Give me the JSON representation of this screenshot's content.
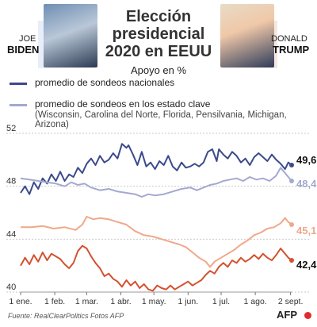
{
  "header": {
    "title_line1": "Elección",
    "title_line2": "presidencial",
    "title_line3": "2020 en EEUU",
    "subtitle": "Apoyo en %",
    "left_first_name": "JOE",
    "left_last_name": "BIDEN",
    "right_first_name": "DONALD",
    "right_last_name": "TRUMP"
  },
  "legend": {
    "national_label": "promedio de sondeos nacionales",
    "state_label": "promedio de sondeos en los estado clave",
    "state_note": "(Wisconsin, Carolina del Norte, Florida, Pensilvania, Michigan, Arizona)"
  },
  "colors": {
    "biden_national": "#3b4a8c",
    "biden_states": "#a3a9cf",
    "trump_national": "#d4512e",
    "trump_states": "#f0a88a",
    "grid": "#c9c9c9"
  },
  "footer": {
    "source": "Fuente: RealClearPolitics     Fotos AFP",
    "agency": "AFP"
  },
  "chart_data": {
    "type": "line",
    "ylim": [
      40,
      52
    ],
    "yticks": [
      "40",
      "44",
      "48",
      "52"
    ],
    "xlim": [
      0,
      246
    ],
    "xticks": [
      {
        "label": "1 ene.",
        "day": 0
      },
      {
        "label": "1 feb.",
        "day": 31
      },
      {
        "label": "1 mar.",
        "day": 60
      },
      {
        "label": "1 abr.",
        "day": 91
      },
      {
        "label": "1 may.",
        "day": 121
      },
      {
        "label": "1 jun.",
        "day": 152
      },
      {
        "label": "1 jul.",
        "day": 182
      },
      {
        "label": "1 ago.",
        "day": 213
      },
      {
        "label": "2 sept.",
        "day": 245
      }
    ],
    "series": [
      {
        "name": "Biden - promedio de sondeos nacionales",
        "color_key": "biden_national",
        "end_label": "49,6",
        "points": [
          [
            0,
            47.5
          ],
          [
            4,
            48.0
          ],
          [
            8,
            47.4
          ],
          [
            12,
            48.3
          ],
          [
            16,
            47.8
          ],
          [
            20,
            48.6
          ],
          [
            24,
            48.2
          ],
          [
            28,
            48.9
          ],
          [
            32,
            48.4
          ],
          [
            36,
            49.1
          ],
          [
            40,
            48.4
          ],
          [
            44,
            48.9
          ],
          [
            48,
            48.7
          ],
          [
            52,
            49.4
          ],
          [
            56,
            49.0
          ],
          [
            60,
            49.7
          ],
          [
            64,
            50.1
          ],
          [
            68,
            49.6
          ],
          [
            72,
            50.3
          ],
          [
            76,
            49.8
          ],
          [
            80,
            50.0
          ],
          [
            84,
            50.5
          ],
          [
            88,
            50.1
          ],
          [
            92,
            51.2
          ],
          [
            96,
            50.9
          ],
          [
            98,
            51.1
          ],
          [
            102,
            50.4
          ],
          [
            106,
            49.6
          ],
          [
            110,
            50.6
          ],
          [
            114,
            49.5
          ],
          [
            118,
            49.8
          ],
          [
            122,
            49.3
          ],
          [
            126,
            49.9
          ],
          [
            130,
            49.6
          ],
          [
            134,
            50.3
          ],
          [
            138,
            49.5
          ],
          [
            142,
            49.2
          ],
          [
            146,
            49.8
          ],
          [
            150,
            49.4
          ],
          [
            154,
            49.5
          ],
          [
            158,
            49.7
          ],
          [
            162,
            49.5
          ],
          [
            166,
            49.8
          ],
          [
            170,
            50.6
          ],
          [
            174,
            50.8
          ],
          [
            178,
            49.9
          ],
          [
            180,
            50.8
          ],
          [
            184,
            50.4
          ],
          [
            188,
            50.1
          ],
          [
            192,
            50.6
          ],
          [
            196,
            50.3
          ],
          [
            200,
            49.8
          ],
          [
            204,
            50.1
          ],
          [
            208,
            49.6
          ],
          [
            212,
            50.2
          ],
          [
            216,
            50.5
          ],
          [
            220,
            50.2
          ],
          [
            224,
            49.9
          ],
          [
            228,
            50.4
          ],
          [
            232,
            50.0
          ],
          [
            236,
            49.7
          ],
          [
            240,
            49.3
          ],
          [
            243,
            49.8
          ],
          [
            246,
            49.6
          ]
        ]
      },
      {
        "name": "Biden - promedio de sondeos en los estado clave",
        "color_key": "biden_states",
        "end_label": "48,4",
        "points": [
          [
            0,
            48.6
          ],
          [
            8,
            48.5
          ],
          [
            16,
            48.4
          ],
          [
            24,
            48.3
          ],
          [
            32,
            48.2
          ],
          [
            40,
            48.0
          ],
          [
            46,
            48.3
          ],
          [
            52,
            48.1
          ],
          [
            58,
            48.2
          ],
          [
            64,
            47.9
          ],
          [
            72,
            47.7
          ],
          [
            80,
            47.8
          ],
          [
            88,
            47.6
          ],
          [
            96,
            47.5
          ],
          [
            104,
            47.4
          ],
          [
            110,
            47.2
          ],
          [
            116,
            47.4
          ],
          [
            122,
            47.3
          ],
          [
            130,
            47.4
          ],
          [
            138,
            47.6
          ],
          [
            146,
            47.8
          ],
          [
            154,
            47.9
          ],
          [
            160,
            47.7
          ],
          [
            166,
            47.9
          ],
          [
            172,
            48.1
          ],
          [
            178,
            48.2
          ],
          [
            184,
            48.4
          ],
          [
            190,
            48.5
          ],
          [
            196,
            48.6
          ],
          [
            202,
            48.4
          ],
          [
            208,
            48.7
          ],
          [
            214,
            48.5
          ],
          [
            220,
            48.6
          ],
          [
            226,
            48.4
          ],
          [
            232,
            48.8
          ],
          [
            236,
            49.4
          ],
          [
            240,
            49.0
          ],
          [
            243,
            48.7
          ],
          [
            246,
            48.4
          ]
        ]
      },
      {
        "name": "Trump - promedio de sondeos en los estado clave",
        "color_key": "trump_states",
        "end_label": "45,1",
        "points": [
          [
            0,
            44.9
          ],
          [
            10,
            44.9
          ],
          [
            20,
            45.0
          ],
          [
            30,
            44.8
          ],
          [
            40,
            44.9
          ],
          [
            50,
            44.7
          ],
          [
            56,
            45.1
          ],
          [
            60,
            45.7
          ],
          [
            66,
            45.5
          ],
          [
            72,
            45.6
          ],
          [
            80,
            45.5
          ],
          [
            88,
            45.3
          ],
          [
            96,
            45.1
          ],
          [
            104,
            44.6
          ],
          [
            112,
            44.3
          ],
          [
            120,
            44.2
          ],
          [
            128,
            44.0
          ],
          [
            136,
            43.8
          ],
          [
            144,
            43.6
          ],
          [
            150,
            43.4
          ],
          [
            156,
            43.0
          ],
          [
            162,
            42.6
          ],
          [
            168,
            42.3
          ],
          [
            172,
            41.9
          ],
          [
            176,
            42.3
          ],
          [
            182,
            42.6
          ],
          [
            188,
            42.9
          ],
          [
            194,
            43.2
          ],
          [
            200,
            43.6
          ],
          [
            206,
            43.9
          ],
          [
            212,
            44.3
          ],
          [
            218,
            44.5
          ],
          [
            224,
            44.8
          ],
          [
            230,
            44.9
          ],
          [
            236,
            45.2
          ],
          [
            240,
            45.6
          ],
          [
            243,
            45.3
          ],
          [
            246,
            45.1
          ]
        ]
      },
      {
        "name": "Trump - promedio de sondeos nacionales",
        "color_key": "trump_national",
        "end_label": "42,4",
        "points": [
          [
            0,
            42.0
          ],
          [
            4,
            42.6
          ],
          [
            8,
            42.1
          ],
          [
            12,
            42.8
          ],
          [
            16,
            42.3
          ],
          [
            20,
            43.0
          ],
          [
            24,
            42.4
          ],
          [
            28,
            42.9
          ],
          [
            32,
            42.7
          ],
          [
            36,
            42.5
          ],
          [
            40,
            42.1
          ],
          [
            44,
            41.8
          ],
          [
            48,
            42.2
          ],
          [
            52,
            43.1
          ],
          [
            56,
            43.5
          ],
          [
            60,
            43.3
          ],
          [
            64,
            42.7
          ],
          [
            68,
            42.2
          ],
          [
            72,
            41.8
          ],
          [
            76,
            41.2
          ],
          [
            80,
            41.4
          ],
          [
            84,
            41.0
          ],
          [
            88,
            40.8
          ],
          [
            92,
            40.4
          ],
          [
            96,
            40.9
          ],
          [
            100,
            40.5
          ],
          [
            104,
            40.8
          ],
          [
            108,
            40.3
          ],
          [
            112,
            40.6
          ],
          [
            116,
            40.2
          ],
          [
            120,
            40.1
          ],
          [
            124,
            40.5
          ],
          [
            128,
            40.3
          ],
          [
            132,
            40.2
          ],
          [
            136,
            40.5
          ],
          [
            140,
            40.2
          ],
          [
            144,
            40.4
          ],
          [
            148,
            40.6
          ],
          [
            152,
            40.8
          ],
          [
            156,
            40.5
          ],
          [
            160,
            40.7
          ],
          [
            164,
            40.9
          ],
          [
            168,
            41.3
          ],
          [
            172,
            41.6
          ],
          [
            176,
            41.4
          ],
          [
            180,
            41.9
          ],
          [
            184,
            42.2
          ],
          [
            188,
            41.9
          ],
          [
            192,
            42.4
          ],
          [
            196,
            42.2
          ],
          [
            200,
            42.6
          ],
          [
            204,
            42.3
          ],
          [
            208,
            42.5
          ],
          [
            212,
            42.8
          ],
          [
            216,
            42.5
          ],
          [
            220,
            42.9
          ],
          [
            224,
            42.6
          ],
          [
            228,
            42.4
          ],
          [
            232,
            42.8
          ],
          [
            236,
            43.3
          ],
          [
            240,
            42.9
          ],
          [
            243,
            42.6
          ],
          [
            246,
            42.4
          ]
        ]
      }
    ]
  }
}
